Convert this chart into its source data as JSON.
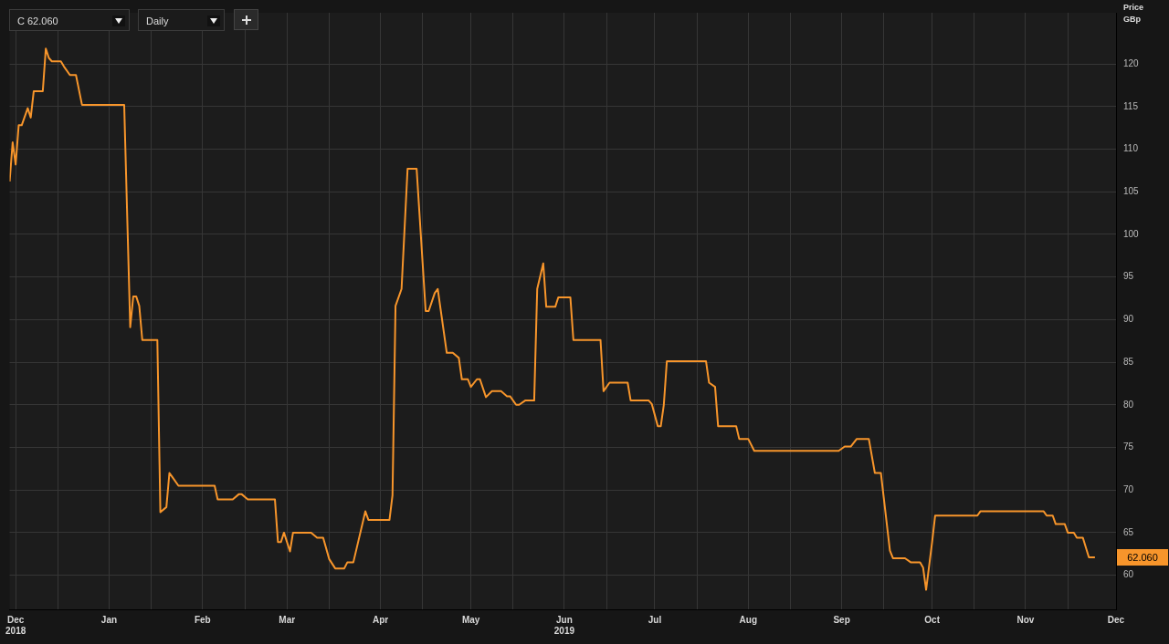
{
  "chart_data": {
    "type": "line",
    "ylabel": "Price GBp",
    "x": [
      "2018-11-29",
      "2018-11-30",
      "2018-12-01",
      "2018-12-02",
      "2018-12-03",
      "2018-12-05",
      "2018-12-06",
      "2018-12-07",
      "2018-12-10",
      "2018-12-11",
      "2018-12-12",
      "2018-12-13",
      "2018-12-16",
      "2018-12-17",
      "2018-12-19",
      "2018-12-21",
      "2018-12-23",
      "2019-01-06",
      "2019-01-08",
      "2019-01-09",
      "2019-01-10",
      "2019-01-11",
      "2019-01-12",
      "2019-01-17",
      "2019-01-18",
      "2019-01-20",
      "2019-01-21",
      "2019-01-22",
      "2019-01-24",
      "2019-02-05",
      "2019-02-06",
      "2019-02-11",
      "2019-02-13",
      "2019-02-14",
      "2019-02-16",
      "2019-02-25",
      "2019-02-26",
      "2019-02-27",
      "2019-02-28",
      "2019-03-02",
      "2019-03-03",
      "2019-03-09",
      "2019-03-11",
      "2019-03-13",
      "2019-03-15",
      "2019-03-17",
      "2019-03-20",
      "2019-03-21",
      "2019-03-23",
      "2019-03-27",
      "2019-03-28",
      "2019-04-04",
      "2019-04-05",
      "2019-04-06",
      "2019-04-08",
      "2019-04-10",
      "2019-04-13",
      "2019-04-16",
      "2019-04-17",
      "2019-04-19",
      "2019-04-20",
      "2019-04-23",
      "2019-04-25",
      "2019-04-27",
      "2019-04-28",
      "2019-04-30",
      "2019-05-01",
      "2019-05-03",
      "2019-05-04",
      "2019-05-06",
      "2019-05-08",
      "2019-05-11",
      "2019-05-13",
      "2019-05-14",
      "2019-05-16",
      "2019-05-17",
      "2019-05-19",
      "2019-05-22",
      "2019-05-23",
      "2019-05-25",
      "2019-05-26",
      "2019-05-29",
      "2019-05-30",
      "2019-06-03",
      "2019-06-04",
      "2019-06-13",
      "2019-06-14",
      "2019-06-16",
      "2019-06-22",
      "2019-06-23",
      "2019-06-29",
      "2019-06-30",
      "2019-07-02",
      "2019-07-03",
      "2019-07-04",
      "2019-07-05",
      "2019-07-18",
      "2019-07-19",
      "2019-07-21",
      "2019-07-22",
      "2019-07-28",
      "2019-07-29",
      "2019-08-01",
      "2019-08-03",
      "2019-08-31",
      "2019-09-02",
      "2019-09-04",
      "2019-09-06",
      "2019-09-10",
      "2019-09-12",
      "2019-09-14",
      "2019-09-17",
      "2019-09-18",
      "2019-09-22",
      "2019-09-24",
      "2019-09-27",
      "2019-09-28",
      "2019-09-29",
      "2019-10-01",
      "2019-10-02",
      "2019-10-16",
      "2019-10-17",
      "2019-11-07",
      "2019-11-08",
      "2019-11-10",
      "2019-11-11",
      "2019-11-14",
      "2019-11-15",
      "2019-11-17",
      "2019-11-18",
      "2019-11-20",
      "2019-11-22",
      "2019-11-24"
    ],
    "series": [
      {
        "color": "#f7952b",
        "values": [
          106.2,
          110.8,
          108.2,
          112.8,
          112.8,
          114.8,
          113.7,
          116.8,
          116.8,
          121.8,
          120.7,
          120.3,
          120.3,
          119.7,
          118.7,
          118.7,
          115.2,
          115.2,
          89.1,
          92.7,
          92.7,
          91.6,
          87.6,
          87.6,
          67.4,
          68.0,
          72.0,
          71.5,
          70.5,
          70.5,
          68.9,
          68.9,
          69.5,
          69.5,
          68.9,
          68.9,
          63.9,
          63.9,
          65.0,
          62.8,
          65.0,
          65.0,
          64.4,
          64.4,
          61.9,
          60.8,
          60.8,
          61.5,
          61.5,
          67.5,
          66.5,
          66.5,
          69.4,
          91.6,
          93.6,
          107.7,
          107.7,
          91.0,
          91.0,
          93.1,
          93.6,
          86.1,
          86.1,
          85.5,
          83.0,
          83.0,
          82.1,
          83.0,
          83.0,
          80.9,
          81.6,
          81.6,
          81.0,
          81.0,
          80.0,
          80.0,
          80.5,
          80.5,
          93.6,
          96.6,
          91.5,
          91.5,
          92.6,
          92.6,
          87.6,
          87.6,
          81.6,
          82.6,
          82.6,
          80.5,
          80.5,
          80.1,
          77.5,
          77.5,
          80.0,
          85.1,
          85.1,
          82.6,
          82.1,
          77.5,
          77.5,
          76.0,
          76.0,
          74.6,
          74.6,
          75.1,
          75.1,
          76.0,
          76.0,
          72.0,
          72.0,
          62.9,
          62.0,
          62.0,
          61.5,
          61.5,
          60.9,
          58.3,
          63.9,
          67.0,
          67.0,
          67.5,
          67.5,
          67.0,
          67.0,
          66.0,
          66.0,
          65.0,
          65.0,
          64.4,
          64.4,
          62.1,
          62.1
        ]
      }
    ],
    "xlim": [
      "2018-11-29",
      "2019-12-01"
    ],
    "xticks": [
      {
        "value": "2018-12-01",
        "label": "Dec\n2018"
      },
      {
        "value": "2018-12-15",
        "label": null
      },
      {
        "value": "2019-01-01",
        "label": "Jan"
      },
      {
        "value": "2019-01-15",
        "label": null
      },
      {
        "value": "2019-02-01",
        "label": "Feb"
      },
      {
        "value": "2019-02-15",
        "label": null
      },
      {
        "value": "2019-03-01",
        "label": "Mar"
      },
      {
        "value": "2019-03-15",
        "label": null
      },
      {
        "value": "2019-04-01",
        "label": "Apr"
      },
      {
        "value": "2019-04-15",
        "label": null
      },
      {
        "value": "2019-05-01",
        "label": "May"
      },
      {
        "value": "2019-05-15",
        "label": null
      },
      {
        "value": "2019-06-01",
        "label": "Jun\n2019"
      },
      {
        "value": "2019-06-15",
        "label": null
      },
      {
        "value": "2019-07-01",
        "label": "Jul"
      },
      {
        "value": "2019-07-15",
        "label": null
      },
      {
        "value": "2019-08-01",
        "label": "Aug"
      },
      {
        "value": "2019-08-15",
        "label": null
      },
      {
        "value": "2019-09-01",
        "label": "Sep"
      },
      {
        "value": "2019-09-15",
        "label": null
      },
      {
        "value": "2019-10-01",
        "label": "Oct"
      },
      {
        "value": "2019-10-15",
        "label": null
      },
      {
        "value": "2019-11-01",
        "label": "Nov"
      },
      {
        "value": "2019-11-15",
        "label": null
      },
      {
        "value": "2019-12-01",
        "label": "Dec"
      }
    ],
    "ylim": [
      56,
      126
    ],
    "yticks": [
      60,
      65,
      70,
      75,
      80,
      85,
      90,
      95,
      100,
      105,
      110,
      115,
      120
    ],
    "grid": true,
    "marker": "none",
    "annotations": [
      "C 62.060",
      "Daily",
      "62.060"
    ]
  }
}
